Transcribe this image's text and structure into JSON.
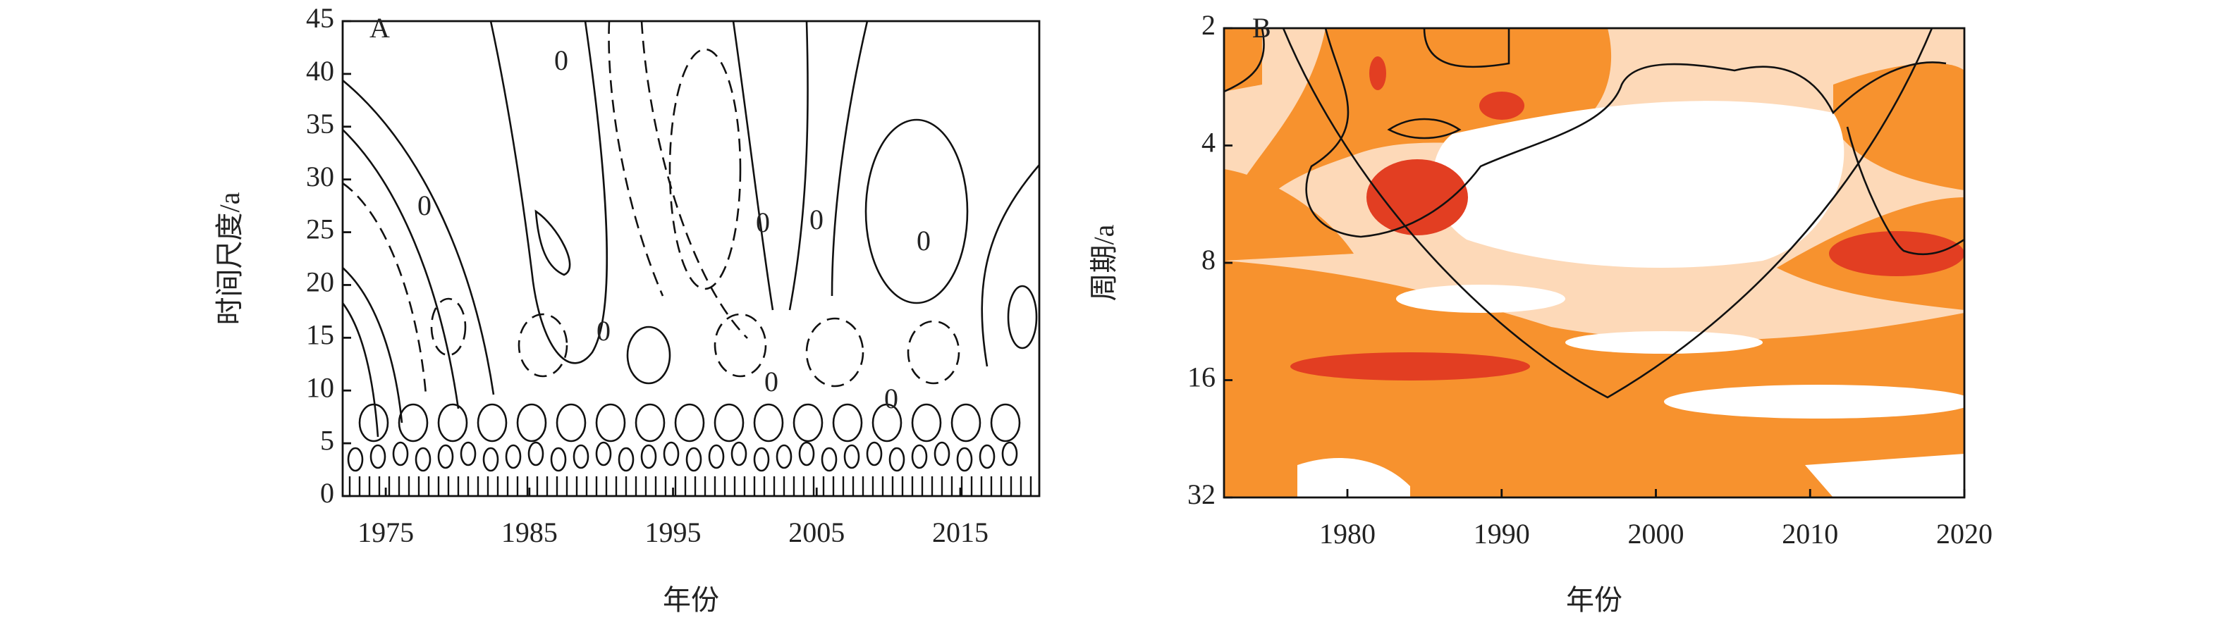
{
  "chart_data": [
    {
      "type": "contour",
      "panel_label": "A",
      "xlabel": "年份",
      "ylabel": "时间尺度/a",
      "xlim": [
        1972,
        2020.5
      ],
      "xticks": [
        1975,
        1985,
        1995,
        2005,
        2015
      ],
      "ylim": [
        0,
        45
      ],
      "yticks": [
        0,
        5,
        10,
        15,
        20,
        25,
        30,
        35,
        40,
        45
      ],
      "contour_labels": [
        "0",
        "0",
        "0",
        "0",
        "0",
        "0",
        "0",
        "0"
      ]
    },
    {
      "type": "wavelet",
      "panel_label": "B",
      "xlabel": "年份",
      "ylabel": "周期/a",
      "xlim": [
        1972,
        2020
      ],
      "xticks": [
        1980,
        1990,
        2000,
        2010,
        2020
      ],
      "ylim": [
        2,
        32
      ],
      "yticks": [
        2,
        4,
        8,
        16,
        32
      ],
      "log_scale": true,
      "y_inverted": true,
      "colors": [
        "#fdd9b8",
        "#f7922e",
        "#e23e22"
      ]
    }
  ]
}
